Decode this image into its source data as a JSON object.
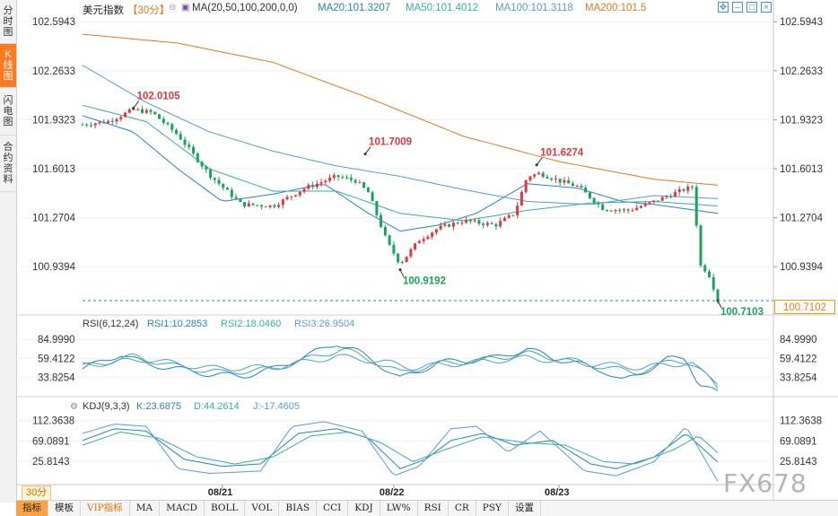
{
  "side_tabs": [
    {
      "label": "分时图",
      "active": false
    },
    {
      "label": "K线图",
      "active": true
    },
    {
      "label": "闪电图",
      "active": false
    },
    {
      "label": "合约资料",
      "active": false
    }
  ],
  "header": {
    "title": "美元指数",
    "period": "【30分】",
    "ma_name": "MA(20,50,100,200,0,0)",
    "ma20": "MA20:101.3207",
    "ma50": "MA50:101.4012",
    "ma100": "MA100:101.3118",
    "ma200": "MA200:101.5"
  },
  "controls": [
    "move-icon",
    "minimize-icon",
    "restore-icon",
    "close-icon"
  ],
  "price_box": "100.7102",
  "period_button": "30分",
  "watermark": "FX678",
  "bottom_buttons": [
    "指标",
    "模板",
    "VIP指标",
    "MA",
    "MACD",
    "BOLL",
    "VOL",
    "BIAS",
    "CCI",
    "KDJ",
    "LW%",
    "RSI",
    "CR",
    "PSY",
    "设置"
  ],
  "colors": {
    "up": "#e0383e",
    "down": "#1aa260",
    "ma20": "#2a82c7",
    "ma50": "#3ab0a0",
    "ma100": "#5b9bd5",
    "ma200": "#e07b2a",
    "orange": "#f39c12"
  },
  "chart_data": [
    {
      "type": "candlestick",
      "name": "美元指数 30分",
      "yticks": [
        "102.5943",
        "102.2633",
        "101.9323",
        "101.6013",
        "101.2704",
        "100.9394"
      ],
      "ylim": [
        100.68,
        102.62
      ],
      "xticks": [
        "08/21",
        "08/22",
        "08/23"
      ],
      "annotations": [
        {
          "label": "102.0105",
          "value": 102.0105,
          "kind": "high"
        },
        {
          "label": "101.7009",
          "value": 101.7009,
          "kind": "high"
        },
        {
          "label": "100.9192",
          "value": 100.9192,
          "kind": "low"
        },
        {
          "label": "101.6274",
          "value": 101.6274,
          "kind": "high"
        },
        {
          "label": "100.7103",
          "value": 100.7103,
          "kind": "low"
        }
      ],
      "current_price": 100.7102,
      "ma_series": [
        {
          "name": "MA20",
          "keys": [
            [
              0,
              101.96
            ],
            [
              0.08,
              101.85
            ],
            [
              0.15,
              101.6
            ],
            [
              0.22,
              101.38
            ],
            [
              0.3,
              101.43
            ],
            [
              0.38,
              101.5
            ],
            [
              0.45,
              101.3
            ],
            [
              0.5,
              101.18
            ],
            [
              0.56,
              101.22
            ],
            [
              0.62,
              101.3
            ],
            [
              0.7,
              101.5
            ],
            [
              0.78,
              101.47
            ],
            [
              0.85,
              101.38
            ],
            [
              0.9,
              101.36
            ],
            [
              0.95,
              101.33
            ],
            [
              1,
              101.3
            ]
          ]
        },
        {
          "name": "MA50",
          "keys": [
            [
              0,
              102.03
            ],
            [
              0.1,
              101.92
            ],
            [
              0.2,
              101.6
            ],
            [
              0.3,
              101.45
            ],
            [
              0.4,
              101.45
            ],
            [
              0.5,
              101.3
            ],
            [
              0.6,
              101.25
            ],
            [
              0.7,
              101.32
            ],
            [
              0.8,
              101.37
            ],
            [
              0.9,
              101.38
            ],
            [
              1,
              101.35
            ]
          ]
        },
        {
          "name": "MA100",
          "keys": [
            [
              0,
              102.3
            ],
            [
              0.1,
              102.05
            ],
            [
              0.2,
              101.85
            ],
            [
              0.3,
              101.72
            ],
            [
              0.4,
              101.62
            ],
            [
              0.5,
              101.55
            ],
            [
              0.6,
              101.46
            ],
            [
              0.7,
              101.38
            ],
            [
              0.8,
              101.36
            ],
            [
              0.9,
              101.42
            ],
            [
              1,
              101.4
            ]
          ]
        },
        {
          "name": "MA200",
          "keys": [
            [
              0,
              102.51
            ],
            [
              0.15,
              102.45
            ],
            [
              0.3,
              102.32
            ],
            [
              0.45,
              102.08
            ],
            [
              0.6,
              101.82
            ],
            [
              0.75,
              101.65
            ],
            [
              0.9,
              101.53
            ],
            [
              1,
              101.49
            ]
          ]
        }
      ],
      "price_path": [
        [
          0,
          101.9
        ],
        [
          0.04,
          101.92
        ],
        [
          0.08,
          102.0
        ],
        [
          0.11,
          101.98
        ],
        [
          0.15,
          101.83
        ],
        [
          0.2,
          101.56
        ],
        [
          0.25,
          101.36
        ],
        [
          0.3,
          101.35
        ],
        [
          0.35,
          101.47
        ],
        [
          0.4,
          101.55
        ],
        [
          0.43,
          101.52
        ],
        [
          0.45,
          101.44
        ],
        [
          0.48,
          101.1
        ],
        [
          0.5,
          100.96
        ],
        [
          0.53,
          101.12
        ],
        [
          0.56,
          101.2
        ],
        [
          0.6,
          101.25
        ],
        [
          0.65,
          101.22
        ],
        [
          0.68,
          101.3
        ],
        [
          0.7,
          101.55
        ],
        [
          0.72,
          101.57
        ],
        [
          0.75,
          101.52
        ],
        [
          0.78,
          101.48
        ],
        [
          0.82,
          101.33
        ],
        [
          0.86,
          101.32
        ],
        [
          0.9,
          101.38
        ],
        [
          0.94,
          101.45
        ],
        [
          0.96,
          101.48
        ],
        [
          0.965,
          101.3
        ],
        [
          0.972,
          100.95
        ],
        [
          0.985,
          100.9
        ],
        [
          1,
          100.72
        ]
      ]
    },
    {
      "type": "line",
      "name": "RSI(6,12,24)",
      "legend": [
        "RSI1:10.2853",
        "RSI2:18.0460",
        "RSI3:26.9504"
      ],
      "yticks": [
        "84.9990",
        "59.4122",
        "33.8254"
      ],
      "ylim": [
        10,
        95
      ],
      "series": [
        {
          "name": "RSI1",
          "keys": [
            [
              0,
              45
            ],
            [
              0.06,
              65
            ],
            [
              0.1,
              52
            ],
            [
              0.15,
              45
            ],
            [
              0.2,
              38
            ],
            [
              0.25,
              35
            ],
            [
              0.3,
              45
            ],
            [
              0.35,
              62
            ],
            [
              0.4,
              80
            ],
            [
              0.43,
              70
            ],
            [
              0.46,
              55
            ],
            [
              0.5,
              32
            ],
            [
              0.53,
              42
            ],
            [
              0.56,
              54
            ],
            [
              0.6,
              56
            ],
            [
              0.65,
              60
            ],
            [
              0.7,
              72
            ],
            [
              0.74,
              60
            ],
            [
              0.78,
              52
            ],
            [
              0.82,
              43
            ],
            [
              0.85,
              28
            ],
            [
              0.88,
              40
            ],
            [
              0.92,
              58
            ],
            [
              0.95,
              60
            ],
            [
              0.97,
              25
            ],
            [
              1,
              12
            ]
          ]
        },
        {
          "name": "RSI2",
          "keys": [
            [
              0,
              48
            ],
            [
              0.08,
              62
            ],
            [
              0.15,
              48
            ],
            [
              0.22,
              40
            ],
            [
              0.3,
              45
            ],
            [
              0.36,
              60
            ],
            [
              0.41,
              72
            ],
            [
              0.46,
              55
            ],
            [
              0.5,
              40
            ],
            [
              0.56,
              52
            ],
            [
              0.62,
              56
            ],
            [
              0.7,
              66
            ],
            [
              0.76,
              58
            ],
            [
              0.82,
              48
            ],
            [
              0.87,
              40
            ],
            [
              0.93,
              56
            ],
            [
              0.96,
              56
            ],
            [
              1,
              18
            ]
          ]
        },
        {
          "name": "RSI3",
          "keys": [
            [
              0,
              50
            ],
            [
              0.1,
              58
            ],
            [
              0.2,
              46
            ],
            [
              0.3,
              47
            ],
            [
              0.4,
              62
            ],
            [
              0.47,
              55
            ],
            [
              0.52,
              47
            ],
            [
              0.6,
              53
            ],
            [
              0.7,
              60
            ],
            [
              0.8,
              52
            ],
            [
              0.88,
              47
            ],
            [
              0.95,
              53
            ],
            [
              1,
              27
            ]
          ]
        }
      ]
    },
    {
      "type": "line",
      "name": "KDJ(9,3,3)",
      "legend": [
        "K:23.6875",
        "D:44.2614",
        "J:-17.4605"
      ],
      "yticks": [
        "112.3638",
        "69.0891",
        "25.8143"
      ],
      "ylim": [
        -20,
        125
      ],
      "series": [
        {
          "name": "K",
          "keys": [
            [
              0,
              70
            ],
            [
              0.05,
              95
            ],
            [
              0.1,
              90
            ],
            [
              0.16,
              30
            ],
            [
              0.22,
              15
            ],
            [
              0.28,
              20
            ],
            [
              0.34,
              85
            ],
            [
              0.4,
              95
            ],
            [
              0.45,
              75
            ],
            [
              0.5,
              10
            ],
            [
              0.54,
              30
            ],
            [
              0.58,
              70
            ],
            [
              0.63,
              85
            ],
            [
              0.68,
              60
            ],
            [
              0.74,
              70
            ],
            [
              0.8,
              20
            ],
            [
              0.84,
              10
            ],
            [
              0.9,
              35
            ],
            [
              0.95,
              85
            ],
            [
              1,
              24
            ]
          ]
        },
        {
          "name": "D",
          "keys": [
            [
              0,
              60
            ],
            [
              0.06,
              88
            ],
            [
              0.12,
              75
            ],
            [
              0.18,
              35
            ],
            [
              0.24,
              20
            ],
            [
              0.3,
              35
            ],
            [
              0.36,
              80
            ],
            [
              0.42,
              88
            ],
            [
              0.47,
              65
            ],
            [
              0.52,
              25
            ],
            [
              0.57,
              50
            ],
            [
              0.63,
              78
            ],
            [
              0.7,
              65
            ],
            [
              0.76,
              60
            ],
            [
              0.82,
              25
            ],
            [
              0.87,
              20
            ],
            [
              0.93,
              50
            ],
            [
              0.97,
              80
            ],
            [
              1,
              44
            ]
          ]
        },
        {
          "name": "J",
          "keys": [
            [
              0,
              85
            ],
            [
              0.05,
              105
            ],
            [
              0.1,
              100
            ],
            [
              0.15,
              10
            ],
            [
              0.2,
              0
            ],
            [
              0.28,
              5
            ],
            [
              0.33,
              100
            ],
            [
              0.38,
              110
            ],
            [
              0.44,
              90
            ],
            [
              0.49,
              -5
            ],
            [
              0.53,
              15
            ],
            [
              0.58,
              95
            ],
            [
              0.62,
              100
            ],
            [
              0.67,
              45
            ],
            [
              0.72,
              90
            ],
            [
              0.79,
              5
            ],
            [
              0.84,
              -5
            ],
            [
              0.9,
              25
            ],
            [
              0.95,
              100
            ],
            [
              1,
              -17
            ]
          ]
        }
      ]
    }
  ]
}
